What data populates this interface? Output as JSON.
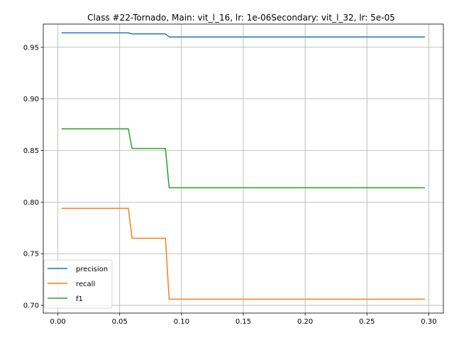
{
  "chart_data": {
    "type": "line",
    "title": "Class #22-Tornado, Main: vit_l_16, lr: 1e-06Secondary: vit_l_32, lr: 5e-05",
    "xlabel": "",
    "ylabel": "",
    "xlim": [
      -0.0118,
      0.3118
    ],
    "ylim": [
      0.6925,
      0.9725
    ],
    "x_ticks": [
      0.0,
      0.05,
      0.1,
      0.15,
      0.2,
      0.25,
      0.3
    ],
    "x_tick_labels": [
      "0.00",
      "0.05",
      "0.10",
      "0.15",
      "0.20",
      "0.25",
      "0.30"
    ],
    "y_ticks": [
      0.7,
      0.75,
      0.8,
      0.85,
      0.9,
      0.95
    ],
    "y_tick_labels": [
      "0.70",
      "0.75",
      "0.80",
      "0.85",
      "0.90",
      "0.95"
    ],
    "grid": true,
    "legend_position": "lower-left",
    "series": [
      {
        "name": "precision",
        "color": "#1f77b4",
        "points": [
          [
            0.003,
            0.964
          ],
          [
            0.057,
            0.964
          ],
          [
            0.06,
            0.963
          ],
          [
            0.087,
            0.963
          ],
          [
            0.09,
            0.96
          ],
          [
            0.297,
            0.96
          ]
        ]
      },
      {
        "name": "recall",
        "color": "#ff7f0e",
        "points": [
          [
            0.003,
            0.794
          ],
          [
            0.057,
            0.794
          ],
          [
            0.06,
            0.765
          ],
          [
            0.087,
            0.765
          ],
          [
            0.09,
            0.706
          ],
          [
            0.297,
            0.706
          ]
        ]
      },
      {
        "name": "f1",
        "color": "#2ca02c",
        "points": [
          [
            0.003,
            0.871
          ],
          [
            0.057,
            0.871
          ],
          [
            0.06,
            0.852
          ],
          [
            0.087,
            0.852
          ],
          [
            0.09,
            0.814
          ],
          [
            0.297,
            0.814
          ]
        ]
      }
    ]
  }
}
